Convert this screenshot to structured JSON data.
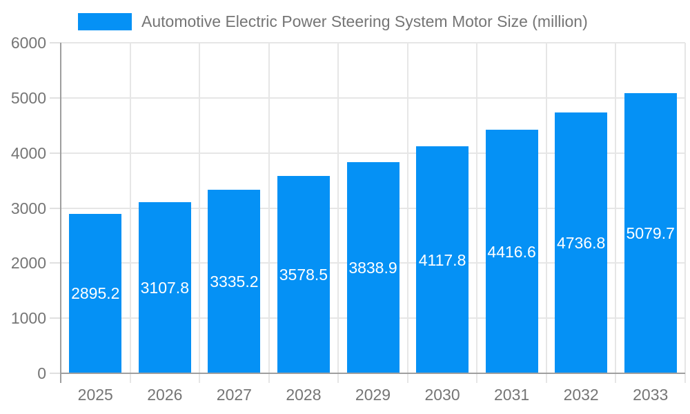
{
  "chart_data": {
    "type": "bar",
    "title": "Automotive Electric Power Steering System Motor Size (million)",
    "categories": [
      "2025",
      "2026",
      "2027",
      "2028",
      "2029",
      "2030",
      "2031",
      "2032",
      "2033"
    ],
    "values": [
      2895.2,
      3107.8,
      3335.2,
      3578.5,
      3838.9,
      4117.8,
      4416.6,
      4736.8,
      5079.7
    ],
    "value_labels": [
      "2895.2",
      "3107.8",
      "3335.2",
      "3578.5",
      "3838.9",
      "4117.8",
      "4416.6",
      "4736.8",
      "5079.7"
    ],
    "xlabel": "",
    "ylabel": "",
    "ylim": [
      0,
      6000
    ],
    "yticks": [
      0,
      1000,
      2000,
      3000,
      4000,
      5000,
      6000
    ],
    "grid": true,
    "legend_position": "top-left",
    "colors": {
      "bar": "#0591f5",
      "axis": "#9e9e9e",
      "gridline": "#e6e6e6",
      "tick_label": "#757575",
      "value_label": "#ffffff",
      "legend_text": "#757575"
    }
  }
}
